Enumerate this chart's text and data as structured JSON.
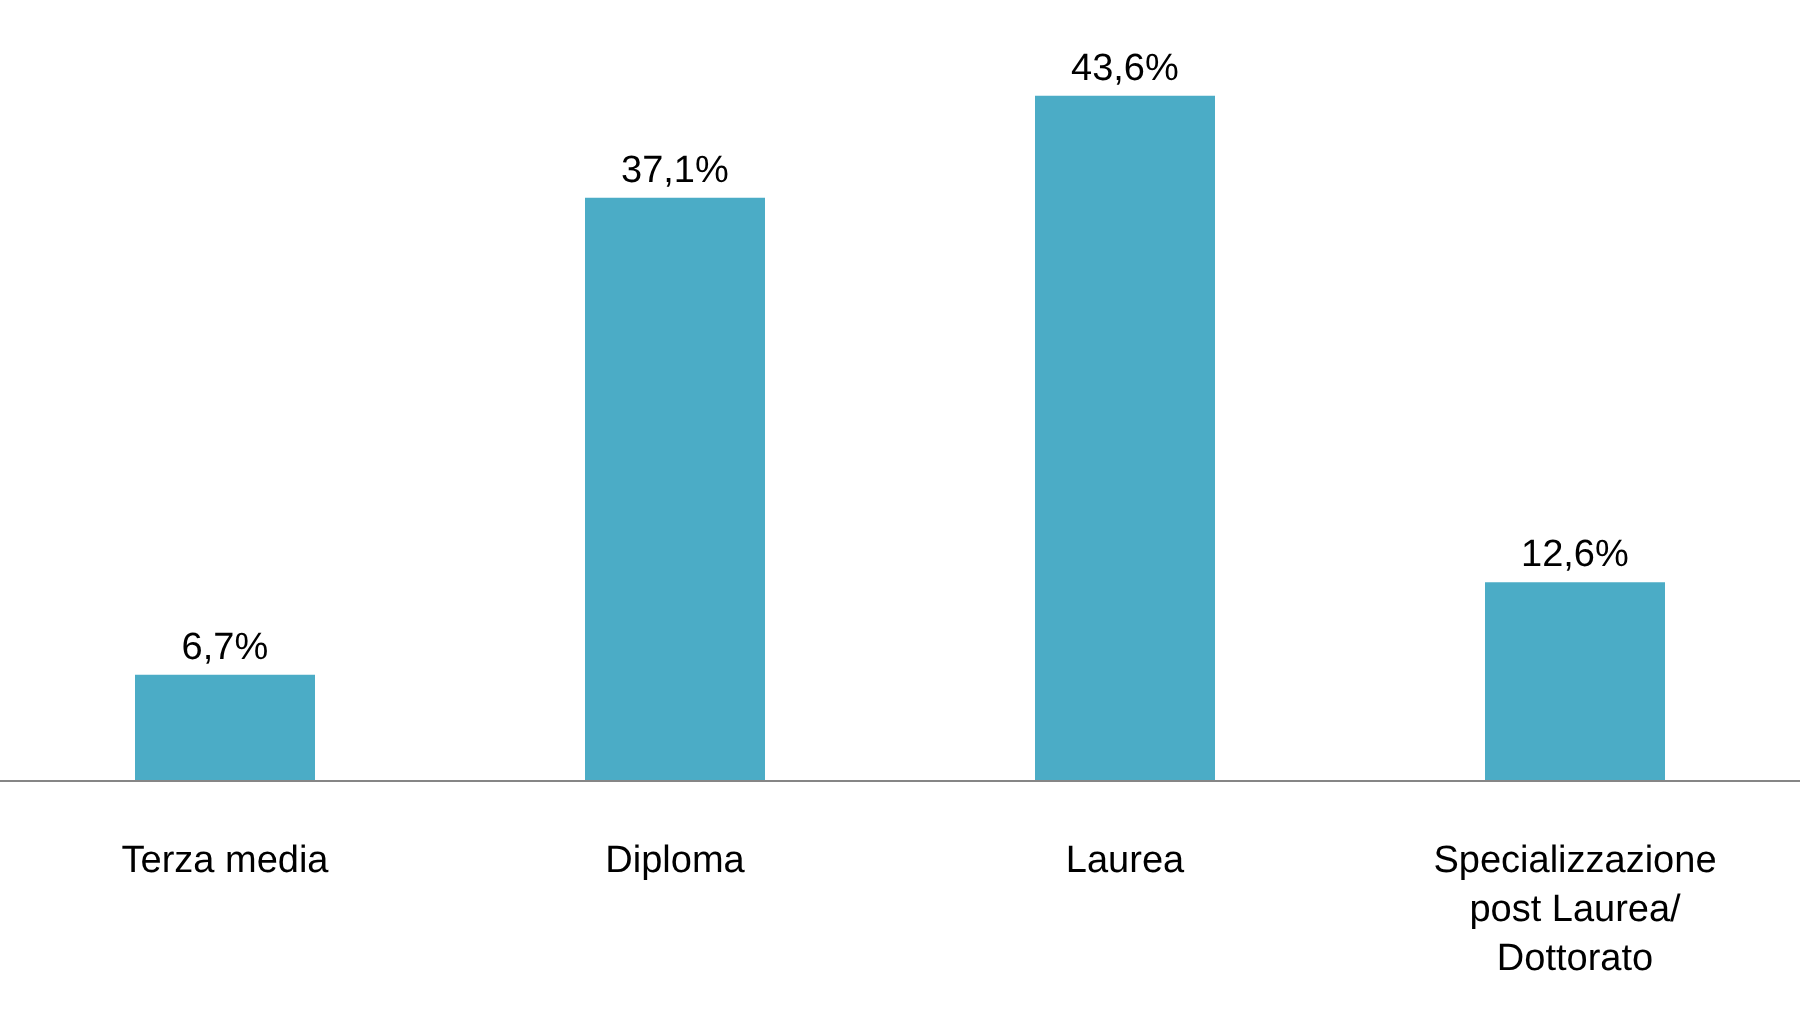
{
  "chart_data": {
    "type": "bar",
    "categories": [
      "Terza media",
      "Diploma",
      "Laurea",
      "Specializzazione post Laurea/ Dottorato"
    ],
    "values": [
      6.7,
      37.1,
      43.6,
      12.6
    ],
    "value_labels": [
      "6,7%",
      "37,1%",
      "43,6%",
      "12,6%"
    ],
    "color": "#4bacc6",
    "legend": false
  }
}
